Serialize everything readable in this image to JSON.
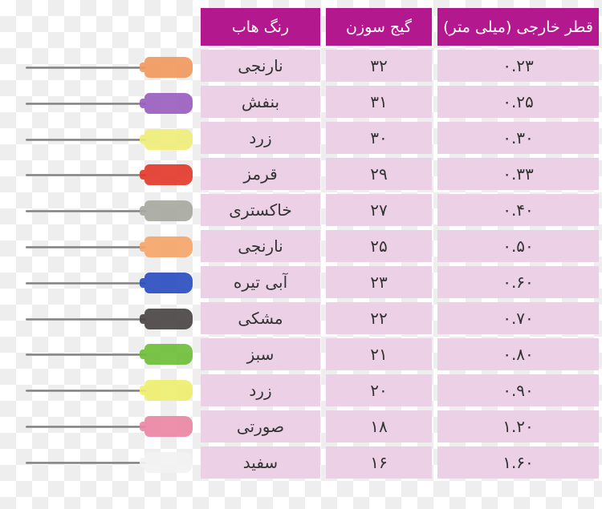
{
  "table": {
    "headers": [
      "رنگ هاب",
      "گیج سوزن",
      "قطر خارجی (میلی متر)"
    ],
    "rows": [
      {
        "hub_color": "نارنجی",
        "gauge": "۳۲",
        "diameter": "۰.۲۳",
        "swatch": "#f29a5e"
      },
      {
        "hub_color": "بنفش",
        "gauge": "۳۱",
        "diameter": "۰.۲۵",
        "swatch": "#9b5fc0"
      },
      {
        "hub_color": "زرد",
        "gauge": "۳۰",
        "diameter": "۰.۳۰",
        "swatch": "#f0ee7a"
      },
      {
        "hub_color": "قرمز",
        "gauge": "۲۹",
        "diameter": "۰.۳۳",
        "swatch": "#e23a2c"
      },
      {
        "hub_color": "خاکستری",
        "gauge": "۲۷",
        "diameter": "۰.۴۰",
        "swatch": "#a8aaa0"
      },
      {
        "hub_color": "نارنجی",
        "gauge": "۲۵",
        "diameter": "۰.۵۰",
        "swatch": "#f5a66a"
      },
      {
        "hub_color": "آبی تیره",
        "gauge": "۲۳",
        "diameter": "۰.۶۰",
        "swatch": "#2a4fc0"
      },
      {
        "hub_color": "مشکی",
        "gauge": "۲۲",
        "diameter": "۰.۷۰",
        "swatch": "#4a4645"
      },
      {
        "hub_color": "سبز",
        "gauge": "۲۱",
        "diameter": "۰.۸۰",
        "swatch": "#6fbf3a"
      },
      {
        "hub_color": "زرد",
        "gauge": "۲۰",
        "diameter": "۰.۹۰",
        "swatch": "#eeee70"
      },
      {
        "hub_color": "صورتی",
        "gauge": "۱۸",
        "diameter": "۱.۲۰",
        "swatch": "#ec87a6"
      },
      {
        "hub_color": "سفید",
        "gauge": "۱۶",
        "diameter": "۱.۶۰",
        "swatch": "#f3f3f3"
      }
    ]
  },
  "colors": {
    "header": "#b3188e",
    "row": "#ebd0e6"
  }
}
